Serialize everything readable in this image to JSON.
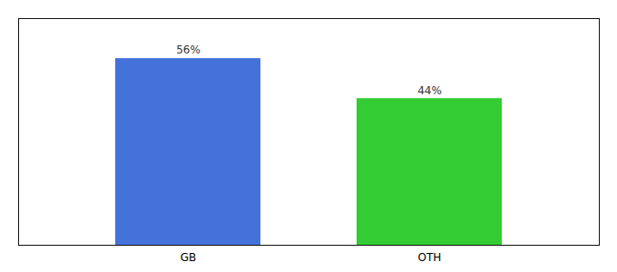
{
  "chart_data": {
    "type": "bar",
    "categories": [
      "GB",
      "OTH"
    ],
    "values": [
      56,
      44
    ],
    "colors": [
      "#4472db",
      "#33cc33"
    ],
    "data_labels": true,
    "value_labels": [
      "56%",
      "44%"
    ],
    "ylim": [
      0,
      68
    ],
    "tick_labels": "x"
  }
}
